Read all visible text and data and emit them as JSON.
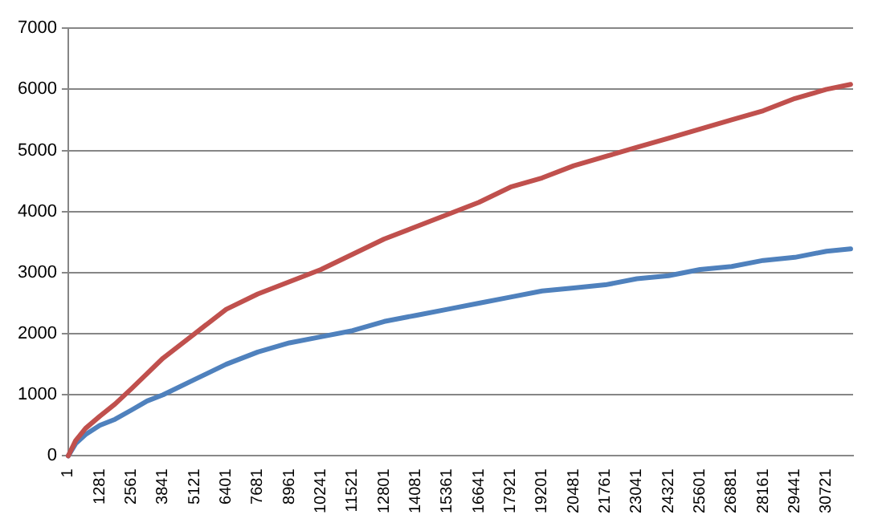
{
  "chart_data": {
    "type": "line",
    "x": [
      1,
      300,
      700,
      1281,
      1900,
      2561,
      3200,
      3841,
      5121,
      6401,
      7681,
      8961,
      10241,
      11521,
      12801,
      14081,
      15361,
      16641,
      17921,
      19201,
      20481,
      21761,
      23041,
      24321,
      25601,
      26881,
      28161,
      29441,
      30721,
      31700
    ],
    "series": [
      {
        "color": "#c0504d",
        "values": [
          0,
          250,
          450,
          650,
          850,
          1100,
          1350,
          1600,
          2000,
          2400,
          2650,
          2850,
          3050,
          3300,
          3550,
          3750,
          3950,
          4150,
          4400,
          4550,
          4750,
          4900,
          5050,
          5200,
          5350,
          5500,
          5650,
          5850,
          6000,
          6080
        ]
      },
      {
        "color": "#4f81bd",
        "values": [
          0,
          200,
          350,
          500,
          600,
          750,
          900,
          1000,
          1250,
          1500,
          1700,
          1850,
          1950,
          2050,
          2200,
          2300,
          2400,
          2500,
          2600,
          2700,
          2750,
          2800,
          2900,
          2950,
          3050,
          3100,
          3200,
          3250,
          3350,
          3390
        ]
      }
    ],
    "xlim": [
      1,
      31800
    ],
    "xticks": [
      1,
      1281,
      2561,
      3841,
      5121,
      6401,
      7681,
      8961,
      10241,
      11521,
      12801,
      14081,
      15361,
      16641,
      17921,
      19201,
      20481,
      21761,
      23041,
      24321,
      25601,
      26881,
      28161,
      29441,
      30721
    ],
    "ylim": [
      0,
      7000
    ],
    "yticks": [
      0,
      1000,
      2000,
      3000,
      4000,
      5000,
      6000,
      7000
    ],
    "grid": "y",
    "legend": false,
    "marker": "none",
    "line_style": "solid"
  }
}
